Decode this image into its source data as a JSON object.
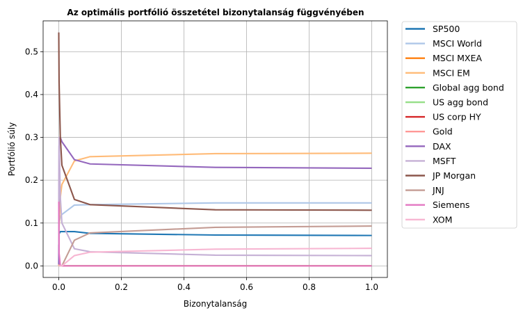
{
  "chart_data": {
    "type": "line",
    "title": "Az optimális portfólió összetétel bizonytalanság függvényében",
    "xlabel": "Bizonytalanság",
    "ylabel": "Portfólió súly",
    "xlim": [
      -0.05,
      1.05
    ],
    "ylim": [
      -0.027,
      0.572
    ],
    "xticks": [
      0.0,
      0.2,
      0.4,
      0.6,
      0.8,
      1.0
    ],
    "xtick_labels": [
      "0.0",
      "0.2",
      "0.4",
      "0.6",
      "0.8",
      "1.0"
    ],
    "yticks": [
      0.0,
      0.1,
      0.2,
      0.3,
      0.4,
      0.5
    ],
    "ytick_labels": [
      "0.0",
      "0.1",
      "0.2",
      "0.3",
      "0.4",
      "0.5"
    ],
    "grid": true,
    "legend_position": "outside-right",
    "x": [
      0,
      0.001,
      0.005,
      0.01,
      0.05,
      0.1,
      0.5,
      1.0
    ],
    "series": [
      {
        "name": "SP500",
        "color": "#1f77b4",
        "values": [
          0.005,
          0.075,
          0.08,
          0.08,
          0.08,
          0.076,
          0.072,
          0.071
        ]
      },
      {
        "name": "MSCI World",
        "color": "#aec7e8",
        "values": [
          0.09,
          0.1,
          0.115,
          0.12,
          0.142,
          0.143,
          0.147,
          0.147
        ]
      },
      {
        "name": "MSCI MXEA",
        "color": "#ff7f0e",
        "values": [
          0.0,
          0.0,
          0.0,
          0.0,
          0.0,
          0.0,
          0.0,
          0.0
        ]
      },
      {
        "name": "MSCI EM",
        "color": "#ffbb78",
        "values": [
          0.0,
          0.09,
          0.16,
          0.19,
          0.245,
          0.255,
          0.262,
          0.263
        ]
      },
      {
        "name": "Global agg bond",
        "color": "#2ca02c",
        "values": [
          0.0,
          0.0,
          0.0,
          0.0,
          0.0,
          0.0,
          0.0,
          0.0
        ]
      },
      {
        "name": "US agg bond",
        "color": "#98df8a",
        "values": [
          0.0,
          0.0,
          0.0,
          0.0,
          0.0,
          0.0,
          0.0,
          0.0
        ]
      },
      {
        "name": "US corp HY",
        "color": "#d62728",
        "values": [
          0.0,
          0.0,
          0.0,
          0.0,
          0.0,
          0.0,
          0.0,
          0.0
        ]
      },
      {
        "name": "Gold",
        "color": "#ff9896",
        "values": [
          0.0,
          0.0,
          0.0,
          0.0,
          0.0,
          0.0,
          0.0,
          0.0
        ]
      },
      {
        "name": "DAX",
        "color": "#9467bd",
        "values": [
          0.003,
          0.28,
          0.3,
          0.29,
          0.248,
          0.238,
          0.23,
          0.228
        ]
      },
      {
        "name": "MSFT",
        "color": "#c5b0d5",
        "values": [
          0.05,
          0.3,
          0.16,
          0.1,
          0.04,
          0.033,
          0.025,
          0.024
        ]
      },
      {
        "name": "JP Morgan",
        "color": "#8c564b",
        "values": [
          0.545,
          0.43,
          0.3,
          0.235,
          0.155,
          0.143,
          0.131,
          0.13
        ]
      },
      {
        "name": "JNJ",
        "color": "#c49c94",
        "values": [
          0.0,
          0.0,
          0.0,
          0.0,
          0.06,
          0.077,
          0.09,
          0.093
        ]
      },
      {
        "name": "Siemens",
        "color": "#e377c2",
        "values": [
          0.15,
          0.03,
          0.0,
          0.0,
          0.0,
          0.0,
          0.0,
          0.0
        ]
      },
      {
        "name": "XOM",
        "color": "#f7b6d2",
        "values": [
          0.0,
          0.0,
          0.0,
          0.0,
          0.024,
          0.032,
          0.039,
          0.041
        ]
      }
    ]
  }
}
